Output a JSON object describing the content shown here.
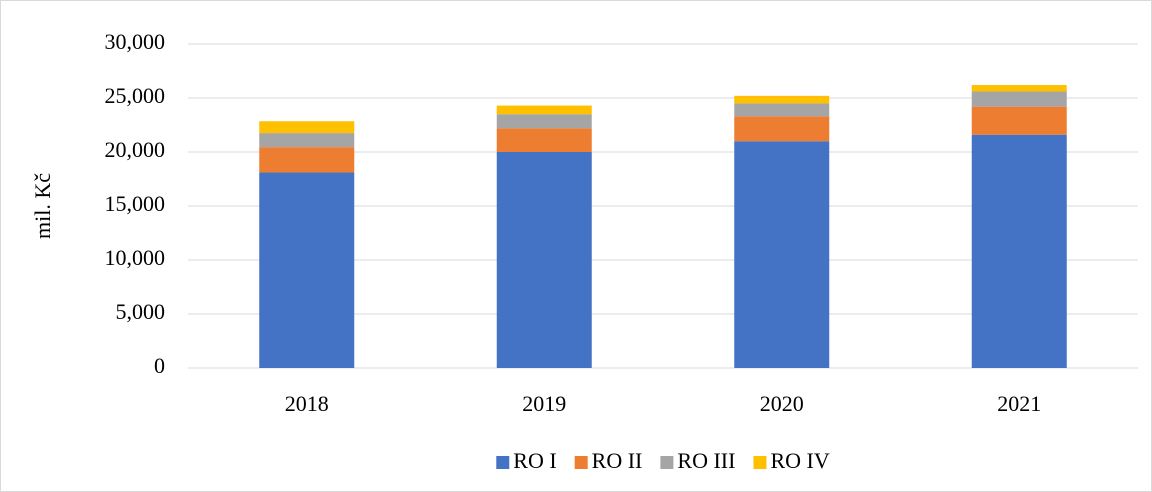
{
  "chart_data": {
    "type": "bar",
    "stacked": true,
    "y_label": "mil. Kč",
    "categories": [
      "2018",
      "2019",
      "2020",
      "2021"
    ],
    "series": [
      {
        "name": "RO I",
        "color": "#4472c4",
        "values": [
          18100,
          20000,
          21000,
          21600
        ]
      },
      {
        "name": "RO II",
        "color": "#ed7d31",
        "values": [
          2350,
          2200,
          2300,
          2600
        ]
      },
      {
        "name": "RO III",
        "color": "#a5a5a5",
        "values": [
          1300,
          1300,
          1200,
          1400
        ]
      },
      {
        "name": "RO IV",
        "color": "#ffc000",
        "values": [
          1100,
          800,
          700,
          600
        ]
      }
    ],
    "ylim": [
      0,
      30000
    ],
    "yticks": [
      0,
      {
        "value": 5000,
        "label": "5,000"
      },
      {
        "value": 10000,
        "label": "10,000"
      },
      {
        "value": 15000,
        "label": "15,000"
      },
      {
        "value": 20000,
        "label": "20,000"
      },
      {
        "value": 25000,
        "label": "25,000"
      },
      {
        "value": 30000,
        "label": "30,000"
      }
    ],
    "grid": true,
    "legend": "bottom"
  }
}
